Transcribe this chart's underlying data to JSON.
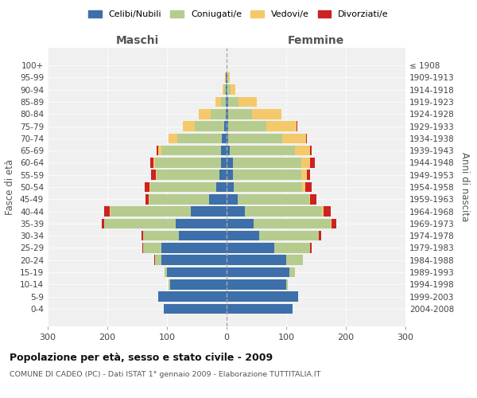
{
  "age_groups": [
    "0-4",
    "5-9",
    "10-14",
    "15-19",
    "20-24",
    "25-29",
    "30-34",
    "35-39",
    "40-44",
    "45-49",
    "50-54",
    "55-59",
    "60-64",
    "65-69",
    "70-74",
    "75-79",
    "80-84",
    "85-89",
    "90-94",
    "95-99",
    "100+"
  ],
  "birth_years": [
    "2004-2008",
    "1999-2003",
    "1994-1998",
    "1989-1993",
    "1984-1988",
    "1979-1983",
    "1974-1978",
    "1969-1973",
    "1964-1968",
    "1959-1963",
    "1954-1958",
    "1949-1953",
    "1944-1948",
    "1939-1943",
    "1934-1938",
    "1929-1933",
    "1924-1928",
    "1919-1923",
    "1914-1918",
    "1909-1913",
    "≤ 1908"
  ],
  "colors": {
    "celibi": "#3d6faa",
    "coniugati": "#b5cc8e",
    "vedovi": "#f5c96a",
    "divorziati": "#cc2222"
  },
  "males": {
    "celibi": [
      105,
      115,
      95,
      100,
      110,
      110,
      80,
      85,
      60,
      30,
      18,
      12,
      10,
      10,
      8,
      4,
      2,
      1,
      1,
      1,
      0
    ],
    "coniugati": [
      0,
      0,
      2,
      4,
      10,
      30,
      60,
      120,
      135,
      100,
      110,
      105,
      110,
      100,
      75,
      50,
      25,
      8,
      3,
      1,
      0
    ],
    "vedovi": [
      0,
      0,
      0,
      0,
      0,
      0,
      0,
      0,
      1,
      1,
      2,
      2,
      3,
      5,
      15,
      20,
      20,
      10,
      3,
      1,
      0
    ],
    "divorziati": [
      0,
      0,
      0,
      0,
      1,
      1,
      3,
      5,
      10,
      5,
      8,
      8,
      5,
      2,
      0,
      0,
      0,
      0,
      0,
      0,
      0
    ]
  },
  "females": {
    "celibi": [
      110,
      120,
      100,
      105,
      100,
      80,
      55,
      45,
      30,
      18,
      12,
      10,
      10,
      5,
      3,
      2,
      2,
      2,
      1,
      1,
      0
    ],
    "coniugati": [
      0,
      0,
      3,
      10,
      28,
      60,
      100,
      130,
      130,
      120,
      115,
      115,
      115,
      110,
      90,
      65,
      40,
      18,
      5,
      2,
      0
    ],
    "vedovi": [
      0,
      0,
      0,
      0,
      0,
      0,
      0,
      1,
      2,
      2,
      5,
      10,
      15,
      25,
      40,
      50,
      50,
      30,
      8,
      2,
      0
    ],
    "divorziati": [
      0,
      0,
      0,
      0,
      0,
      2,
      3,
      8,
      12,
      10,
      10,
      5,
      8,
      2,
      2,
      2,
      0,
      0,
      0,
      0,
      0
    ]
  },
  "title": "Popolazione per età, sesso e stato civile - 2009",
  "subtitle": "COMUNE DI CADEO (PC) - Dati ISTAT 1° gennaio 2009 - Elaborazione TUTTITALIA.IT",
  "xlabel_left": "Maschi",
  "xlabel_right": "Femmine",
  "ylabel_left": "Fasce di età",
  "ylabel_right": "Anni di nascita",
  "xlim": 300,
  "background_color": "#f0f0f0",
  "grid_color": "#cccccc"
}
